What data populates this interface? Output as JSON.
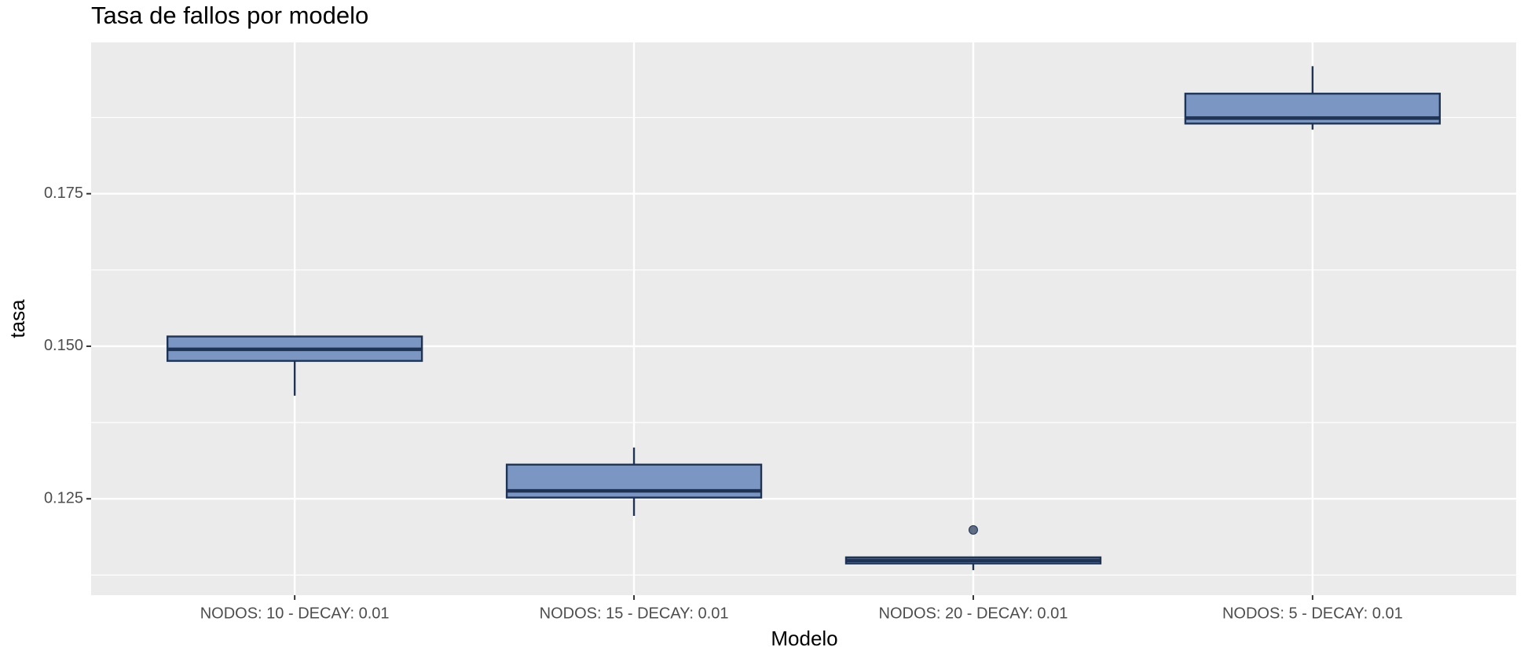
{
  "chart_data": {
    "type": "box",
    "title": "Tasa de fallos por modelo",
    "x_label": "Modelo",
    "y_label": "tasa",
    "categories": [
      "NODOS: 10 - DECAY: 0.01",
      "NODOS: 15 - DECAY: 0.01",
      "NODOS: 20 - DECAY: 0.01",
      "NODOS: 5 - DECAY: 0.01"
    ],
    "whisker_low": [
      0.1419,
      0.1222,
      0.1133,
      0.1855
    ],
    "q1": [
      0.1476,
      0.1252,
      0.1144,
      0.1865
    ],
    "median": [
      0.1495,
      0.1263,
      0.1149,
      0.1874
    ],
    "q3": [
      0.1516,
      0.1306,
      0.1154,
      0.1914
    ],
    "whisker_high": [
      0.1516,
      0.1334,
      0.1154,
      0.1959
    ],
    "outliers": [
      [],
      [],
      [
        0.1199
      ],
      []
    ],
    "fill": "#7b96c2",
    "color": "#1f3355",
    "ylim": [
      0.1092,
      0.1998
    ],
    "yticks": [
      {
        "value": 0.125,
        "label": "0.125"
      },
      {
        "value": 0.15,
        "label": "0.150"
      },
      {
        "value": 0.175,
        "label": "0.175"
      }
    ],
    "minor_grid": [
      0.1125,
      0.1375,
      0.1625,
      0.1875
    ],
    "grid": true
  }
}
